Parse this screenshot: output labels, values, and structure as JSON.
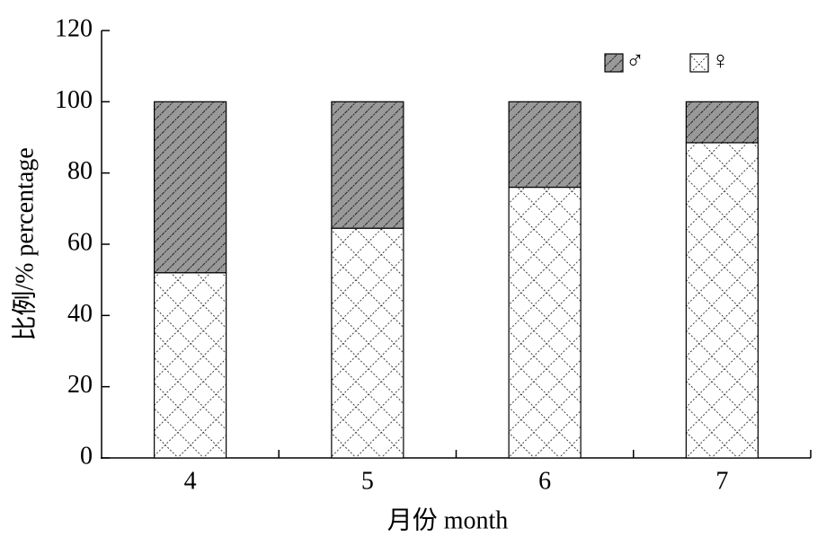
{
  "chart_data": {
    "type": "stacked_bar",
    "x_label": "月份 month",
    "y_label": "比例/% percentage",
    "categories": [
      "4",
      "5",
      "6",
      "7"
    ],
    "series": [
      {
        "name": "♂",
        "color": "#999999",
        "values": [
          48,
          35.5,
          24,
          11.5
        ]
      },
      {
        "name": "♀",
        "color": "#ffffff",
        "values": [
          52,
          64.5,
          76,
          88.5
        ]
      }
    ],
    "ylim": [
      0,
      120
    ],
    "yticks": [
      0,
      20,
      40,
      60,
      80,
      100,
      120
    ],
    "legend": "top-right"
  }
}
